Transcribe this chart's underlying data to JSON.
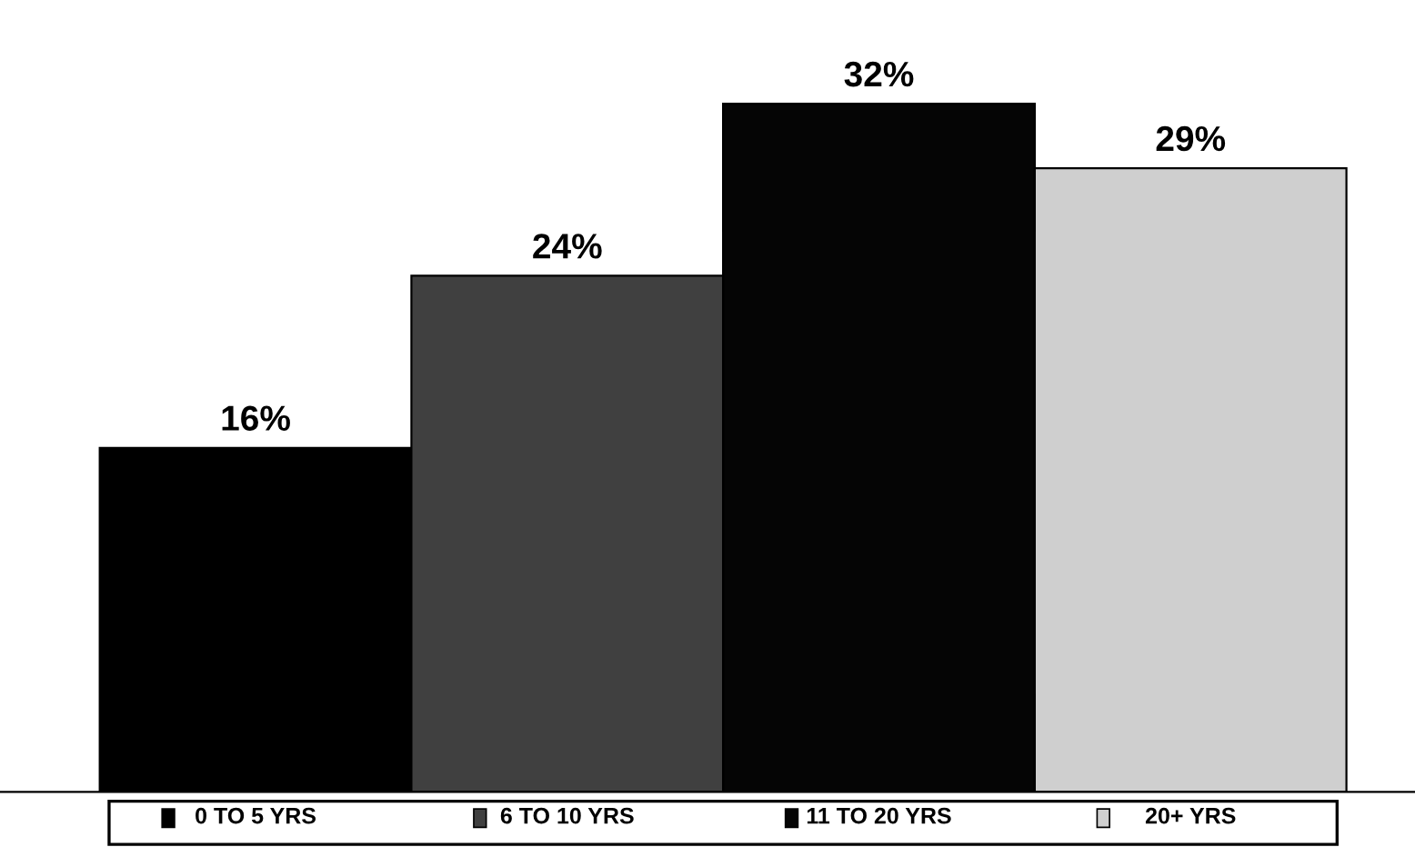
{
  "chart_data": {
    "type": "bar",
    "categories": [
      "0 TO 5 YRS",
      "6 TO 10 YRS",
      "11 TO 20 YRS",
      "20+ YRS"
    ],
    "values": [
      16,
      24,
      32,
      29
    ],
    "value_labels": [
      "16%",
      "24%",
      "32%",
      "29%"
    ],
    "colors": [
      "#000000",
      "#404040",
      "#050505",
      "#cfcfcf"
    ]
  }
}
